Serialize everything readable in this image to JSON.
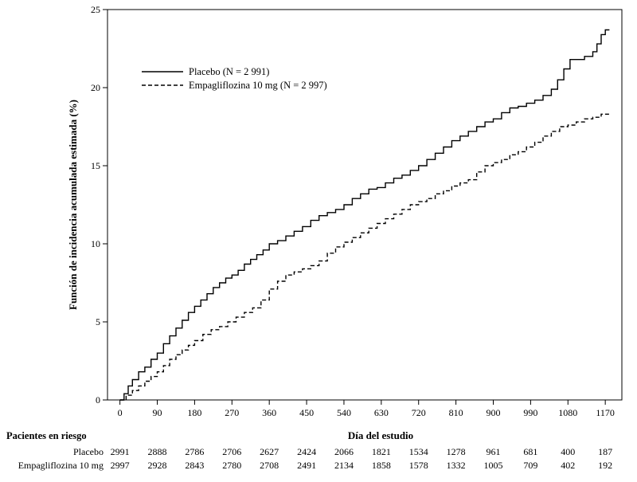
{
  "chart_data": {
    "type": "line",
    "title": "",
    "xlabel": "Día del estudio",
    "ylabel": "Función de incidencia acumulada estimada (%)",
    "xlim": [
      -30,
      1210
    ],
    "ylim": [
      0,
      25
    ],
    "x_ticks": [
      0,
      90,
      180,
      270,
      360,
      450,
      540,
      630,
      720,
      810,
      900,
      990,
      1080,
      1170
    ],
    "y_ticks": [
      0,
      5,
      10,
      15,
      20,
      25
    ],
    "grid": false,
    "legend_position": "top-left",
    "series": [
      {
        "name": "Placebo (N = 2 991)",
        "line_style": "solid",
        "color": "#000000",
        "x": [
          0,
          10,
          20,
          30,
          45,
          60,
          75,
          90,
          105,
          120,
          135,
          150,
          165,
          180,
          195,
          210,
          225,
          240,
          255,
          270,
          285,
          300,
          315,
          330,
          345,
          360,
          380,
          400,
          420,
          440,
          460,
          480,
          500,
          520,
          540,
          560,
          580,
          600,
          620,
          640,
          660,
          680,
          700,
          720,
          740,
          760,
          780,
          800,
          820,
          840,
          860,
          880,
          900,
          920,
          940,
          960,
          980,
          1000,
          1020,
          1040,
          1055,
          1070,
          1085,
          1100,
          1120,
          1140,
          1150,
          1160,
          1170,
          1180
        ],
        "y": [
          0,
          0.4,
          0.9,
          1.3,
          1.8,
          2.1,
          2.6,
          3.0,
          3.6,
          4.1,
          4.6,
          5.1,
          5.6,
          6.0,
          6.4,
          6.8,
          7.2,
          7.5,
          7.8,
          8.0,
          8.3,
          8.7,
          9.0,
          9.3,
          9.6,
          10.0,
          10.2,
          10.5,
          10.8,
          11.1,
          11.5,
          11.8,
          12.0,
          12.2,
          12.5,
          12.9,
          13.2,
          13.5,
          13.6,
          13.9,
          14.2,
          14.4,
          14.7,
          15.0,
          15.4,
          15.8,
          16.2,
          16.6,
          16.9,
          17.2,
          17.5,
          17.8,
          18.0,
          18.4,
          18.7,
          18.8,
          19.0,
          19.2,
          19.5,
          19.9,
          20.5,
          21.2,
          21.8,
          21.8,
          22.0,
          22.3,
          22.8,
          23.4,
          23.7,
          23.7
        ]
      },
      {
        "name": "Empagliflozina 10 mg (N = 2 997)",
        "line_style": "dashed",
        "color": "#000000",
        "x": [
          0,
          15,
          30,
          45,
          60,
          75,
          90,
          105,
          120,
          135,
          150,
          165,
          180,
          200,
          220,
          240,
          260,
          280,
          300,
          320,
          340,
          360,
          380,
          400,
          420,
          440,
          460,
          480,
          500,
          520,
          540,
          560,
          580,
          600,
          620,
          640,
          660,
          680,
          700,
          720,
          740,
          760,
          780,
          800,
          820,
          840,
          860,
          880,
          900,
          920,
          940,
          960,
          980,
          1000,
          1020,
          1040,
          1060,
          1080,
          1100,
          1120,
          1140,
          1160,
          1180
        ],
        "y": [
          0,
          0.3,
          0.6,
          0.9,
          1.2,
          1.5,
          1.8,
          2.2,
          2.6,
          2.9,
          3.2,
          3.5,
          3.8,
          4.2,
          4.5,
          4.7,
          5.0,
          5.3,
          5.6,
          5.9,
          6.4,
          7.1,
          7.6,
          8.0,
          8.2,
          8.4,
          8.6,
          8.9,
          9.4,
          9.8,
          10.1,
          10.4,
          10.7,
          11.0,
          11.3,
          11.6,
          11.9,
          12.2,
          12.5,
          12.7,
          12.9,
          13.2,
          13.4,
          13.7,
          13.9,
          14.1,
          14.6,
          15.0,
          15.2,
          15.4,
          15.7,
          15.9,
          16.2,
          16.5,
          16.9,
          17.2,
          17.5,
          17.6,
          17.8,
          18.0,
          18.1,
          18.3,
          18.4
        ]
      }
    ],
    "risk_table": {
      "title": "Pacientes en riesgo",
      "rows": [
        {
          "label": "Placebo",
          "values": [
            "2991",
            "2888",
            "2786",
            "2706",
            "2627",
            "2424",
            "2066",
            "1821",
            "1534",
            "1278",
            "961",
            "681",
            "400",
            "187"
          ]
        },
        {
          "label": "Empagliflozina 10 mg",
          "values": [
            "2997",
            "2928",
            "2843",
            "2780",
            "2708",
            "2491",
            "2134",
            "1858",
            "1578",
            "1332",
            "1005",
            "709",
            "402",
            "192"
          ]
        }
      ]
    }
  }
}
